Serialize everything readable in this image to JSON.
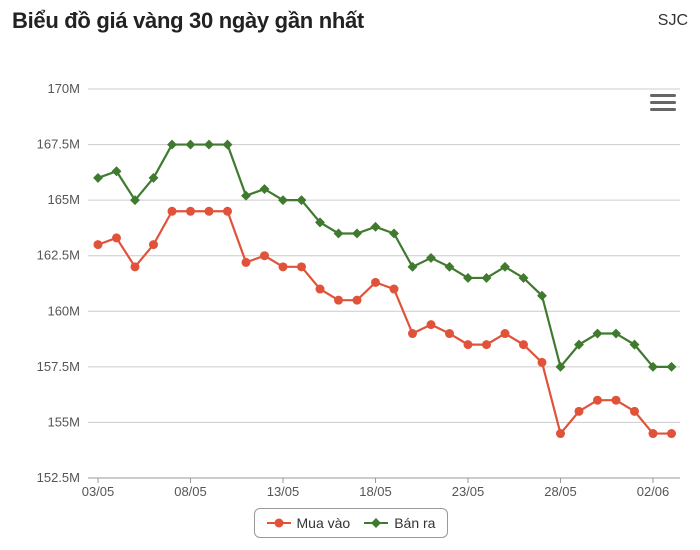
{
  "header": {
    "title": "Biểu đồ giá vàng 30 ngày gần nhất",
    "brand": "SJC"
  },
  "menu": {
    "icon": "hamburger-menu-icon"
  },
  "chart_data": {
    "type": "line",
    "title": "Biểu đồ giá vàng 30 ngày gần nhất",
    "xlabel": "",
    "ylabel": "",
    "ylim": [
      152500000,
      170000000
    ],
    "y_ticks": [
      152500000,
      155000000,
      157500000,
      160000000,
      162500000,
      165000000,
      167500000,
      170000000
    ],
    "y_tick_labels": [
      "152.5M",
      "155M",
      "157.5M",
      "160M",
      "162.5M",
      "165M",
      "167.5M",
      "170M"
    ],
    "x": [
      "03/05",
      "04/05",
      "05/05",
      "06/05",
      "07/05",
      "08/05",
      "09/05",
      "10/05",
      "11/05",
      "12/05",
      "13/05",
      "14/05",
      "15/05",
      "16/05",
      "17/05",
      "18/05",
      "19/05",
      "20/05",
      "21/05",
      "22/05",
      "23/05",
      "24/05",
      "25/05",
      "26/05",
      "27/05",
      "28/05",
      "29/05",
      "30/05",
      "31/05",
      "01/06",
      "02/06",
      "03/06"
    ],
    "x_tick_labels": [
      "03/05",
      "08/05",
      "13/05",
      "18/05",
      "23/05",
      "28/05",
      "02/06"
    ],
    "grid": true,
    "legend_position": "bottom",
    "series": [
      {
        "name": "Mua vào",
        "color": "#e0533a",
        "marker": "circle",
        "values": [
          163000000,
          163300000,
          162000000,
          163000000,
          164500000,
          164500000,
          164500000,
          164500000,
          162200000,
          162500000,
          162000000,
          162000000,
          161000000,
          160500000,
          160500000,
          161300000,
          161000000,
          159000000,
          159400000,
          159000000,
          158500000,
          158500000,
          159000000,
          158500000,
          157700000,
          154500000,
          155500000,
          156000000,
          156000000,
          155500000,
          154500000,
          154500000
        ]
      },
      {
        "name": "Bán ra",
        "color": "#3f7a2f",
        "marker": "diamond",
        "values": [
          166000000,
          166300000,
          165000000,
          166000000,
          167500000,
          167500000,
          167500000,
          167500000,
          165200000,
          165500000,
          165000000,
          165000000,
          164000000,
          163500000,
          163500000,
          163800000,
          163500000,
          162000000,
          162400000,
          162000000,
          161500000,
          161500000,
          162000000,
          161500000,
          160700000,
          157500000,
          158500000,
          159000000,
          159000000,
          158500000,
          157500000,
          157500000
        ]
      }
    ]
  }
}
